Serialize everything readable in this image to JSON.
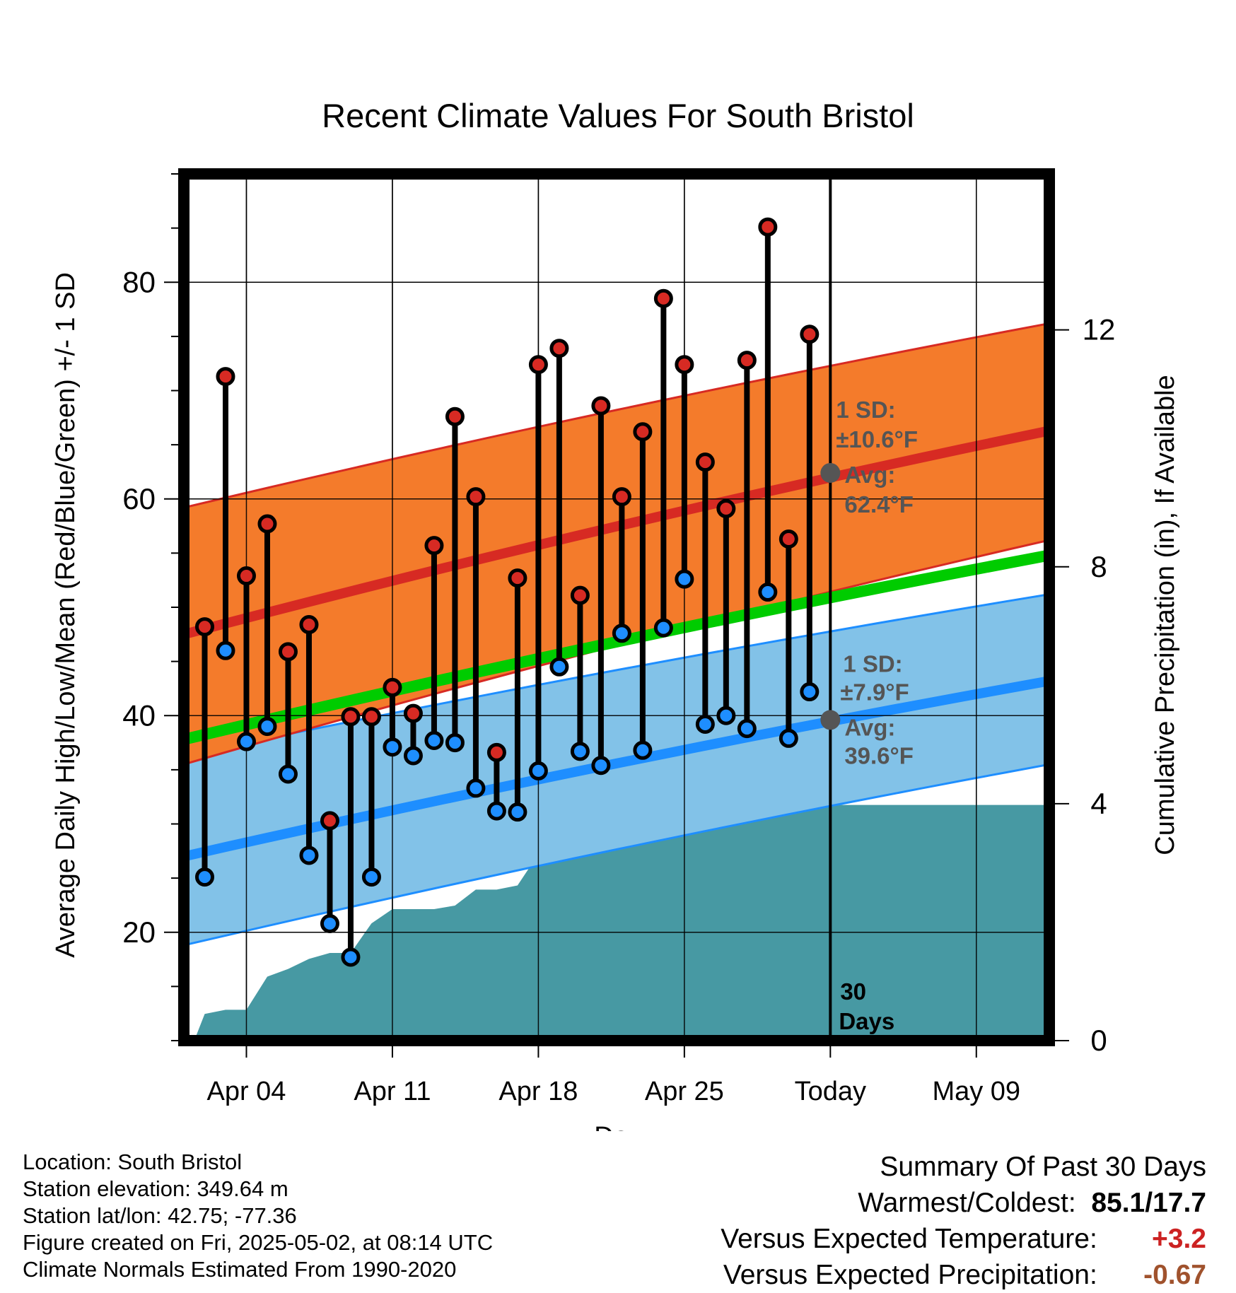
{
  "chart_data": {
    "type": "line",
    "title": "Recent Climate Values For South Bristol",
    "xlabel": "Day",
    "ylabel": "Average Daily High/Low/Mean (Red/Blue/Green) +/- 1 SD",
    "ylabel_right": "Cumulative Precipitation (in), If Available",
    "x_ticks": [
      {
        "day": 3,
        "label": "Apr 04"
      },
      {
        "day": 10,
        "label": "Apr 11"
      },
      {
        "day": 17,
        "label": "Apr 18"
      },
      {
        "day": 24,
        "label": "Apr 25"
      },
      {
        "day": 31,
        "label": "Today"
      },
      {
        "day": 38,
        "label": "May 09"
      }
    ],
    "xlim_day": [
      0,
      41.5
    ],
    "ylim": [
      10,
      90
    ],
    "y_ticks": [
      20,
      40,
      60,
      80
    ],
    "ylim_right": [
      0,
      12
    ],
    "y_ticks_right": [
      0,
      4,
      8,
      12
    ],
    "today_day": 31,
    "days_label": [
      "30",
      "Days"
    ],
    "normal_high": {
      "x": [
        0,
        41.5
      ],
      "start": 47.5,
      "end": 66.3,
      "sd_low_start": 35.5,
      "sd_low_end": 56.2,
      "sd_high_start": 59.2,
      "sd_high_end": 76.2
    },
    "normal_mean": {
      "start": 37.8,
      "end": 54.8
    },
    "normal_low": {
      "start": 27.0,
      "end": 43.2,
      "sd_low_start": 18.8,
      "sd_low_end": 35.5,
      "sd_high_start": 36.3,
      "sd_high_end": 51.2
    },
    "high_annotation": {
      "sd": "1 SD:",
      "sd_value": "±10.6°F",
      "avg": "Avg:",
      "avg_value": "62.4°F",
      "point": 62.4
    },
    "low_annotation": {
      "sd": "1 SD:",
      "sd_value": "±7.9°F",
      "avg": "Avg:",
      "avg_value": "39.6°F",
      "point": 39.6
    },
    "series": [
      {
        "name": "High",
        "days": [
          1,
          2,
          3,
          4,
          5,
          6,
          7,
          8,
          9,
          10,
          11,
          12,
          13,
          14,
          15,
          16,
          17,
          18,
          19,
          20,
          21,
          22,
          23,
          24,
          25,
          26,
          27,
          28,
          29,
          30
        ],
        "values": [
          48.2,
          71.3,
          52.9,
          57.7,
          45.9,
          48.4,
          30.3,
          39.9,
          39.9,
          42.6,
          40.2,
          55.7,
          67.6,
          60.2,
          36.6,
          52.7,
          72.4,
          73.9,
          51.1,
          68.6,
          60.2,
          66.2,
          78.5,
          72.4,
          63.4,
          59.1,
          72.8,
          85.1,
          56.3,
          75.2
        ]
      },
      {
        "name": "Low",
        "days": [
          1,
          2,
          3,
          4,
          5,
          6,
          7,
          8,
          9,
          10,
          11,
          12,
          13,
          14,
          15,
          16,
          17,
          18,
          19,
          20,
          21,
          22,
          23,
          24,
          25,
          26,
          27,
          28,
          29,
          30
        ],
        "values": [
          25.1,
          46.0,
          37.6,
          39.0,
          34.6,
          27.1,
          20.8,
          17.7,
          25.1,
          37.1,
          36.3,
          37.7,
          37.5,
          33.3,
          31.2,
          31.1,
          34.9,
          44.5,
          36.7,
          35.4,
          47.6,
          36.8,
          48.1,
          52.6,
          39.2,
          40.0,
          38.8,
          51.4,
          37.9,
          42.2
        ]
      }
    ],
    "precip": {
      "days": [
        0.5,
        1,
        2,
        3,
        4,
        5,
        6,
        7,
        8,
        9,
        10,
        11,
        12,
        13,
        14,
        15,
        16,
        17,
        18,
        19,
        20,
        21,
        22,
        23,
        24,
        25,
        26,
        27,
        28,
        29,
        30,
        31,
        41.5
      ],
      "values": [
        0,
        0.45,
        0.52,
        0.52,
        1.08,
        1.21,
        1.38,
        1.48,
        1.48,
        1.98,
        2.22,
        2.22,
        2.22,
        2.28,
        2.55,
        2.55,
        2.62,
        3.15,
        3.15,
        3.28,
        3.28,
        3.28,
        3.38,
        3.75,
        3.75,
        3.75,
        3.98,
        3.98,
        3.98,
        3.98,
        3.98,
        3.98,
        3.98
      ]
    }
  },
  "info": {
    "location": "Location: South Bristol",
    "elevation": "Station elevation: 349.64 m",
    "latlon": "Station lat/lon: 42.75; -77.36",
    "created": "Figure created on Fri, 2025-05-02, at 08:14 UTC",
    "normals": "Climate Normals Estimated From 1990-2020"
  },
  "summary": {
    "title": "Summary Of Past 30 Days",
    "warmest_label": "Warmest/Coldest:",
    "warmest_value": "85.1/17.7",
    "temp_label": "Versus Expected Temperature:",
    "temp_value": "+3.2",
    "precip_label": "Versus Expected Precipitation:",
    "precip_value": "-0.67"
  },
  "colors": {
    "high_band": "#f47b2b",
    "high_line": "#d72a23",
    "mean_line": "#00cc00",
    "low_band": "#82c2e8",
    "low_line": "#1e8eff",
    "precip_fill": "#4799a3",
    "high_dot": "#d72a23",
    "low_dot": "#1e8eff",
    "annotation": "#555555",
    "temp_value": "#cc2222",
    "precip_value": "#a0522d"
  }
}
